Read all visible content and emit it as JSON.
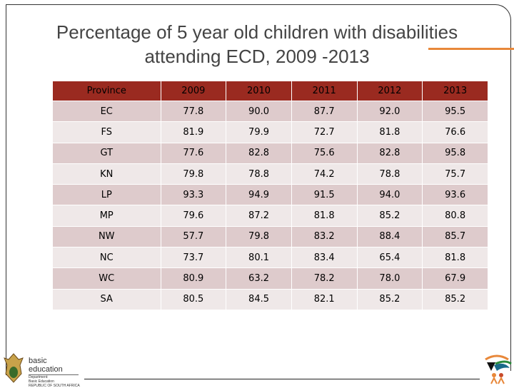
{
  "title_line1": "Percentage of 5 year old children with disabilities",
  "title_line2": "attending ECD, 2009 -2013",
  "table": {
    "headers": [
      "Province",
      "2009",
      "2010",
      "2011",
      "2012",
      "2013"
    ],
    "rows": [
      [
        "EC",
        "77.8",
        "90.0",
        "87.7",
        "92.0",
        "95.5"
      ],
      [
        "FS",
        "81.9",
        "79.9",
        "72.7",
        "81.8",
        "76.6"
      ],
      [
        "GT",
        "77.6",
        "82.8",
        "75.6",
        "82.8",
        "95.8"
      ],
      [
        "KN",
        "79.8",
        "78.8",
        "74.2",
        "78.8",
        "75.7"
      ],
      [
        "LP",
        "93.3",
        "94.9",
        "91.5",
        "94.0",
        "93.6"
      ],
      [
        "MP",
        "79.6",
        "87.2",
        "81.8",
        "85.2",
        "80.8"
      ],
      [
        "NW",
        "57.7",
        "79.8",
        "83.2",
        "88.4",
        "85.7"
      ],
      [
        "NC",
        "73.7",
        "80.1",
        "83.4",
        "65.4",
        "81.8"
      ],
      [
        "WC",
        "80.9",
        "63.2",
        "78.2",
        "78.0",
        "67.9"
      ],
      [
        "SA",
        "80.5",
        "84.5",
        "82.1",
        "85.2",
        "85.2"
      ]
    ]
  },
  "footer": {
    "logo_main": "basic education",
    "logo_dept": "Department:",
    "logo_dept2": "Basic Education",
    "logo_country": "REPUBLIC OF SOUTH AFRICA"
  },
  "colors": {
    "header": "#9a2a20",
    "row_odd": "#decbcc",
    "row_even": "#efe8e8",
    "accent": "#e8883a"
  }
}
